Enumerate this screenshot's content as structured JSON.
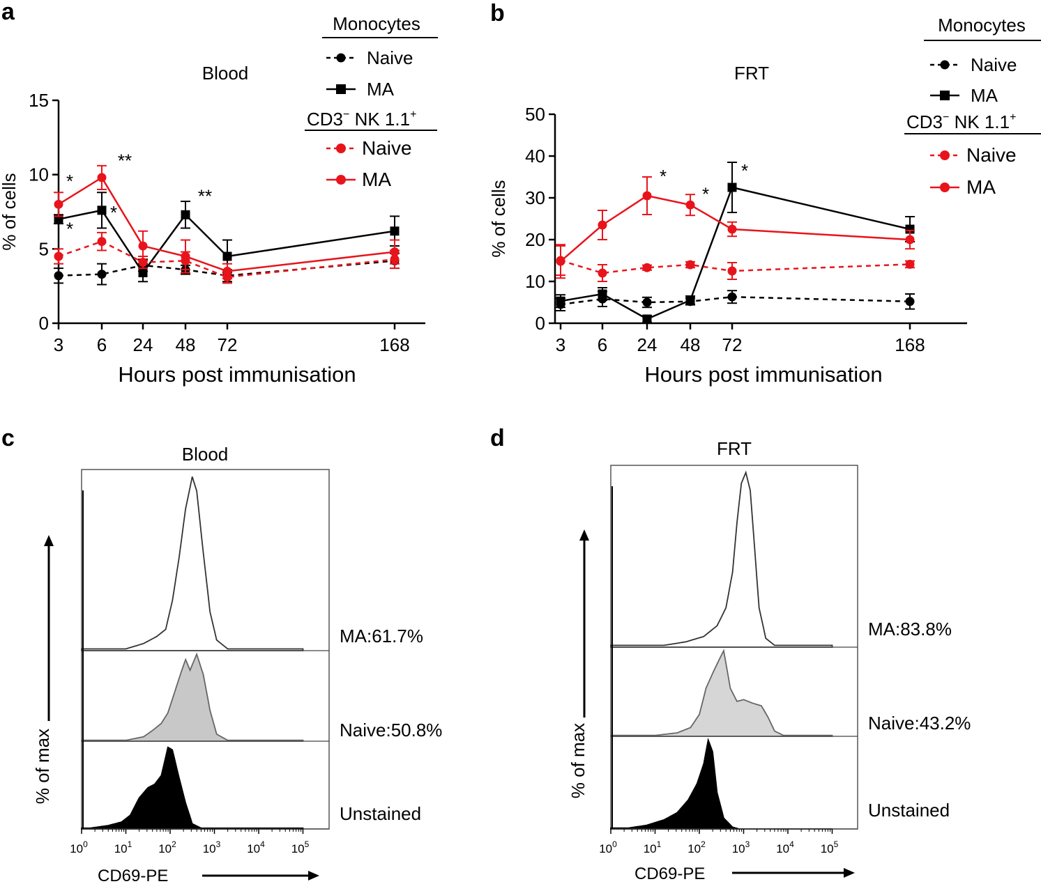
{
  "panels": {
    "a": {
      "letter": "a"
    },
    "b": {
      "letter": "b"
    },
    "c": {
      "letter": "c"
    },
    "d": {
      "letter": "d"
    }
  },
  "legend": {
    "group1_title": "Monocytes",
    "group2_title": "CD3",
    "group2_title_sup1": "−",
    "group2_title_mid": " NK 1.1",
    "group2_title_sup2": "+",
    "naive": "Naive",
    "ma": "MA"
  },
  "colors": {
    "black": "#000000",
    "red": "#e8141b",
    "naive_fill": "#c8c8c8",
    "naive_fill_d": "#d6d6d6",
    "unstained_fill": "#000000"
  },
  "chart_data": [
    {
      "id": "a",
      "type": "line",
      "title": "Blood",
      "xlabel": "Hours post immunisation",
      "ylabel": "% of cells",
      "categories": [
        "3",
        "6",
        "24",
        "48",
        "72",
        "168"
      ],
      "yticks": [
        "0",
        "5",
        "10",
        "15"
      ],
      "ylim": [
        0,
        15
      ],
      "series": [
        {
          "name": "Monocytes Naive",
          "color": "#000000",
          "dashed": true,
          "marker": "circle",
          "values": [
            3.2,
            3.3,
            3.9,
            3.6,
            3.2,
            4.2
          ],
          "err": [
            0.5,
            0.7,
            0.4,
            0.3,
            0.4,
            0.5
          ]
        },
        {
          "name": "Monocytes MA",
          "color": "#000000",
          "dashed": false,
          "marker": "square",
          "values": [
            7.0,
            7.6,
            3.4,
            7.3,
            4.5,
            6.2
          ],
          "err": [
            0.3,
            1.2,
            0.6,
            0.9,
            1.1,
            1.0
          ]
        },
        {
          "name": "CD3- NK 1.1+ Naive",
          "color": "#e8141b",
          "dashed": true,
          "marker": "circle",
          "values": [
            4.5,
            5.5,
            4.1,
            4.2,
            3.1,
            4.3
          ],
          "err": [
            0.5,
            0.6,
            0.4,
            0.6,
            0.4,
            0.6
          ]
        },
        {
          "name": "CD3- NK 1.1+ MA",
          "color": "#e8141b",
          "dashed": false,
          "marker": "circle",
          "values": [
            8.0,
            9.8,
            5.2,
            4.5,
            3.5,
            4.8
          ],
          "err": [
            0.8,
            0.8,
            1.0,
            1.1,
            0.5,
            0.8
          ]
        }
      ],
      "annotations": [
        {
          "text": "*",
          "cat": 0,
          "value": 9.6,
          "dx": 16
        },
        {
          "text": "*",
          "cat": 0,
          "value": 6.4,
          "dx": 16
        },
        {
          "text": "**",
          "cat": 1,
          "value": 11.0,
          "dx": 33
        },
        {
          "text": "*",
          "cat": 1,
          "value": 7.5,
          "dx": 17
        },
        {
          "text": "**",
          "cat": 3,
          "value": 8.6,
          "dx": 28
        }
      ]
    },
    {
      "id": "b",
      "type": "line",
      "title": "FRT",
      "xlabel": "Hours post immunisation",
      "ylabel": "% of cells",
      "categories": [
        "3",
        "6",
        "24",
        "48",
        "72",
        "168"
      ],
      "yticks": [
        "0",
        "10",
        "20",
        "30",
        "40",
        "50"
      ],
      "ylim": [
        0,
        50
      ],
      "series": [
        {
          "name": "Monocytes Naive",
          "color": "#000000",
          "dashed": true,
          "marker": "circle",
          "values": [
            4.5,
            5.8,
            5.0,
            5.2,
            6.3,
            5.2
          ],
          "err": [
            1.5,
            1.8,
            1.2,
            0.8,
            1.5,
            1.8
          ]
        },
        {
          "name": "Monocytes MA",
          "color": "#000000",
          "dashed": false,
          "marker": "square",
          "values": [
            5.3,
            7.0,
            1.0,
            5.5,
            32.5,
            22.5
          ],
          "err": [
            1.5,
            1.5,
            0.8,
            1.0,
            6.0,
            3.0
          ]
        },
        {
          "name": "CD3- NK 1.1+ Naive",
          "color": "#e8141b",
          "dashed": true,
          "marker": "circle",
          "values": [
            15.0,
            12.0,
            13.3,
            14.0,
            12.5,
            14.1
          ],
          "err": [
            3.5,
            2.0,
            0.6,
            0.7,
            2.0,
            0.8
          ]
        },
        {
          "name": "CD3- NK 1.1+ MA",
          "color": "#e8141b",
          "dashed": false,
          "marker": "circle",
          "values": [
            14.8,
            23.5,
            30.5,
            28.3,
            22.5,
            20.0
          ],
          "err": [
            4.0,
            3.5,
            4.5,
            2.5,
            1.7,
            2.2
          ]
        }
      ],
      "annotations": [
        {
          "text": "*",
          "cat": 2,
          "value": 35.3,
          "dx": 23
        },
        {
          "text": "*",
          "cat": 3,
          "value": 31.1,
          "dx": 22
        },
        {
          "text": "*",
          "cat": 4,
          "value": 36.7,
          "dx": 18
        }
      ]
    },
    {
      "id": "c",
      "type": "histogram",
      "title": "Blood",
      "xlabel": "CD69-PE",
      "ylabel": "% of max",
      "xtick_base": "10",
      "xtick_exps": [
        "0",
        "1",
        "2",
        "3",
        "4",
        "5"
      ],
      "decades": [
        0,
        5
      ],
      "tracks": [
        {
          "name": "MA",
          "label": "MA:61.7%",
          "fill": "none",
          "peak_decade": 2.55,
          "shape": [
            [
              1.0,
              0.01
            ],
            [
              1.4,
              0.04
            ],
            [
              1.7,
              0.08
            ],
            [
              1.9,
              0.12
            ],
            [
              2.05,
              0.28
            ],
            [
              2.2,
              0.52
            ],
            [
              2.35,
              0.8
            ],
            [
              2.5,
              0.98
            ],
            [
              2.6,
              0.9
            ],
            [
              2.75,
              0.55
            ],
            [
              2.9,
              0.22
            ],
            [
              3.05,
              0.06
            ],
            [
              3.3,
              0.01
            ]
          ]
        },
        {
          "name": "Naive",
          "label": "Naive:50.8%",
          "fill": "#c8c8c8",
          "peak_decade": 2.6,
          "shape": [
            [
              1.0,
              0.01
            ],
            [
              1.4,
              0.05
            ],
            [
              1.6,
              0.12
            ],
            [
              1.8,
              0.2
            ],
            [
              1.95,
              0.32
            ],
            [
              2.1,
              0.55
            ],
            [
              2.25,
              0.78
            ],
            [
              2.35,
              0.92
            ],
            [
              2.45,
              0.8
            ],
            [
              2.6,
              0.98
            ],
            [
              2.75,
              0.75
            ],
            [
              2.9,
              0.35
            ],
            [
              3.05,
              0.08
            ],
            [
              3.3,
              0.01
            ]
          ]
        },
        {
          "name": "Unstained",
          "label": "Unstained",
          "fill": "#000000",
          "peak_decade": 2.0,
          "shape": [
            [
              0.2,
              0.01
            ],
            [
              0.6,
              0.04
            ],
            [
              0.9,
              0.08
            ],
            [
              1.1,
              0.16
            ],
            [
              1.3,
              0.36
            ],
            [
              1.5,
              0.48
            ],
            [
              1.65,
              0.52
            ],
            [
              1.8,
              0.62
            ],
            [
              1.95,
              0.95
            ],
            [
              2.05,
              0.92
            ],
            [
              2.2,
              0.6
            ],
            [
              2.35,
              0.3
            ],
            [
              2.5,
              0.06
            ],
            [
              2.7,
              0.01
            ]
          ]
        }
      ]
    },
    {
      "id": "d",
      "type": "histogram",
      "title": "FRT",
      "xlabel": "CD69-PE",
      "ylabel": "% of max",
      "xtick_base": "10",
      "xtick_exps": [
        "0",
        "1",
        "2",
        "3",
        "4",
        "5"
      ],
      "decades": [
        0,
        5
      ],
      "tracks": [
        {
          "name": "MA",
          "label": "MA:83.8%",
          "fill": "none",
          "peak_decade": 3.05,
          "shape": [
            [
              1.2,
              0.01
            ],
            [
              1.7,
              0.03
            ],
            [
              2.1,
              0.06
            ],
            [
              2.4,
              0.12
            ],
            [
              2.6,
              0.22
            ],
            [
              2.75,
              0.42
            ],
            [
              2.85,
              0.7
            ],
            [
              2.95,
              0.92
            ],
            [
              3.05,
              0.98
            ],
            [
              3.15,
              0.88
            ],
            [
              3.25,
              0.55
            ],
            [
              3.35,
              0.22
            ],
            [
              3.5,
              0.05
            ],
            [
              3.7,
              0.01
            ]
          ]
        },
        {
          "name": "Naive",
          "label": "Naive:43.2%",
          "fill": "#d6d6d6",
          "peak_decade": 2.6,
          "shape": [
            [
              1.0,
              0.01
            ],
            [
              1.5,
              0.04
            ],
            [
              1.8,
              0.1
            ],
            [
              2.0,
              0.25
            ],
            [
              2.15,
              0.55
            ],
            [
              2.3,
              0.72
            ],
            [
              2.45,
              0.88
            ],
            [
              2.55,
              0.98
            ],
            [
              2.7,
              0.55
            ],
            [
              2.85,
              0.4
            ],
            [
              3.0,
              0.42
            ],
            [
              3.2,
              0.38
            ],
            [
              3.4,
              0.35
            ],
            [
              3.55,
              0.22
            ],
            [
              3.7,
              0.06
            ],
            [
              3.9,
              0.01
            ]
          ]
        },
        {
          "name": "Unstained",
          "label": "Unstained",
          "fill": "#000000",
          "peak_decade": 2.25,
          "shape": [
            [
              0.4,
              0.01
            ],
            [
              0.8,
              0.04
            ],
            [
              1.2,
              0.1
            ],
            [
              1.5,
              0.18
            ],
            [
              1.75,
              0.32
            ],
            [
              1.95,
              0.5
            ],
            [
              2.1,
              0.72
            ],
            [
              2.2,
              0.98
            ],
            [
              2.3,
              0.85
            ],
            [
              2.4,
              0.4
            ],
            [
              2.55,
              0.12
            ],
            [
              2.75,
              0.02
            ],
            [
              2.9,
              0.0
            ]
          ]
        }
      ]
    }
  ]
}
